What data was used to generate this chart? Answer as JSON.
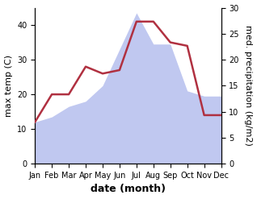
{
  "months": [
    "Jan",
    "Feb",
    "Mar",
    "Apr",
    "May",
    "Jun",
    "Jul",
    "Aug",
    "Sep",
    "Oct",
    "Nov",
    "Dec"
  ],
  "temp": [
    12,
    20,
    20,
    28,
    26,
    27,
    41,
    41,
    35,
    34,
    14,
    14
  ],
  "precip": [
    8,
    9,
    11,
    12,
    15,
    22,
    29,
    23,
    23,
    14,
    13,
    13
  ],
  "temp_color": "#b03040",
  "precip_color_fill": "#c0c8f0",
  "ylabel_left": "max temp (C)",
  "ylabel_right": "med. precipitation (kg/m2)",
  "xlabel": "date (month)",
  "ylim_left": [
    0,
    45
  ],
  "ylim_right": [
    0,
    30
  ],
  "yticks_left": [
    0,
    10,
    20,
    30,
    40
  ],
  "yticks_right": [
    0,
    5,
    10,
    15,
    20,
    25,
    30
  ],
  "background_color": "#ffffff",
  "temp_linewidth": 1.8,
  "xlabel_fontsize": 9,
  "ylabel_fontsize": 8,
  "tick_fontsize": 7
}
